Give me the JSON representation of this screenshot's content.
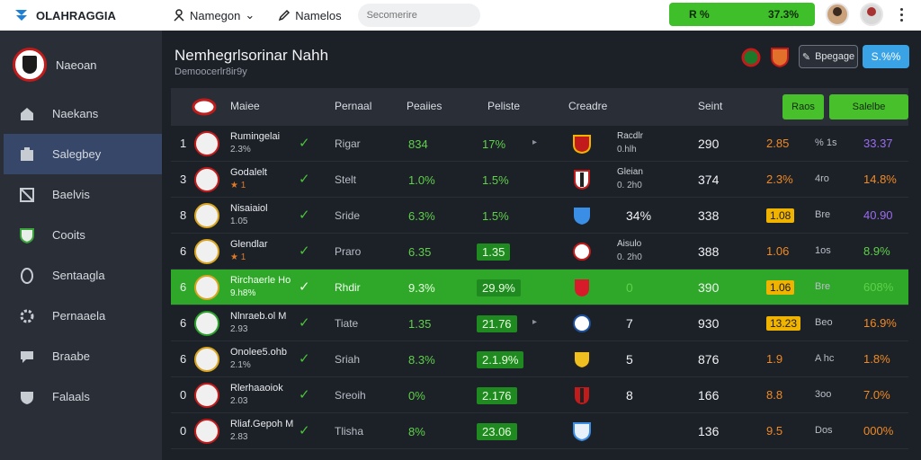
{
  "app": {
    "title": "OLAHRAGGIA"
  },
  "topnav": {
    "link1": "Namegon",
    "link2": "Namelos",
    "search_placeholder": "Secomerire"
  },
  "topbar": {
    "progress_left": "R %",
    "progress_right": "37.3%"
  },
  "sidebar": {
    "title": "Naeoan",
    "items": [
      {
        "label": "Naekans",
        "icon": "home-icon"
      },
      {
        "label": "Salegbey",
        "icon": "building-icon"
      },
      {
        "label": "Baelvis",
        "icon": "box-icon"
      },
      {
        "label": "Cooits",
        "icon": "shield-icon"
      },
      {
        "label": "Sentaagla",
        "icon": "badge-icon"
      },
      {
        "label": "Pernaaela",
        "icon": "gear-icon"
      },
      {
        "label": "Braabe",
        "icon": "chat-icon"
      },
      {
        "label": "Falaals",
        "icon": "shield-check-icon"
      }
    ]
  },
  "header": {
    "title": "Nemhegrlsorinar Nahh",
    "subtitle": "Demoocerlr8ir9y",
    "engage_button": "Bpegage",
    "pct_button": "S.%%"
  },
  "table": {
    "columns": {
      "c1": "Maiee",
      "c2": "Pernaal",
      "c3": "Peaiies",
      "c4": "Peliste",
      "c5": "Creadre",
      "c6": "Seint",
      "btn1": "Raos",
      "btn2": "Salelbe"
    },
    "rows": [
      {
        "rank": "1",
        "name": "Rumingelai",
        "sub": "2.3%",
        "form": "Rigar",
        "p1": "834",
        "p2": "17%",
        "mid": "Racdlr",
        "mid2": "0.hlh",
        "big": "",
        "score": "290",
        "val": "2.85",
        "small": "% 1s",
        "last": "33.37"
      },
      {
        "rank": "3",
        "name": "Godalelt",
        "sub": "★ 1",
        "form": "Stelt",
        "p1": "1.0%",
        "p2": "1.5%",
        "mid": "Gleian",
        "mid2": "0. 2h0",
        "big": "",
        "score": "374",
        "val": "2.3%",
        "small": "4ro",
        "last": "14.8%"
      },
      {
        "rank": "8",
        "name": "Nisaiaiol",
        "sub": "1.05",
        "form": "Sride",
        "p1": "6.3%",
        "p2": "1.5%",
        "mid": "",
        "mid2": "",
        "big": "34%",
        "score": "338",
        "val": "1.08",
        "small": "Bre",
        "last": "40.90"
      },
      {
        "rank": "6",
        "name": "Glendlar",
        "sub": "★ 1",
        "form": "Praro",
        "p1": "6.35",
        "p2": "1.35",
        "mid": "Aisulo",
        "mid2": "0. 2h0",
        "big": "",
        "score": "388",
        "val": "1.06",
        "small": "1os",
        "last": "8.9%"
      },
      {
        "rank": "6",
        "name": "Rirchaerle Ho",
        "sub": "9.h8%",
        "form": "Rhdir",
        "p1": "9.3%",
        "p2": "29.9%",
        "mid": "",
        "mid2": "",
        "big": "0",
        "score": "390",
        "val": "1.06",
        "small": "Bre",
        "last": "608%"
      },
      {
        "rank": "6",
        "name": "Nlnraeb.ol M",
        "sub": "2.93",
        "form": "Tiate",
        "p1": "1.35",
        "p2": "21.76",
        "mid": "",
        "mid2": "",
        "big": "7",
        "score": "930",
        "val": "13.23",
        "small": "Beo",
        "last": "16.9%"
      },
      {
        "rank": "6",
        "name": "Onolee5.ohb",
        "sub": "2.1%",
        "form": "Sriah",
        "p1": "8.3%",
        "p2": "2.1.9%",
        "mid": "",
        "mid2": "",
        "big": "5",
        "score": "876",
        "val": "1.9",
        "small": "A hc",
        "last": "1.8%"
      },
      {
        "rank": "0",
        "name": "Rlerhaaoiok",
        "sub": "2.03",
        "form": "Sreoih",
        "p1": "0%",
        "p2": "2.176",
        "mid": "",
        "mid2": "",
        "big": "8",
        "score": "166",
        "val": "8.8",
        "small": "3oo",
        "last": "7.0%"
      },
      {
        "rank": "0",
        "name": "Rliaf.Gepoh M",
        "sub": "2.83",
        "form": "Tlisha",
        "p1": "8%",
        "p2": "23.06",
        "mid": "",
        "mid2": "",
        "big": "",
        "score": "136",
        "val": "9.5",
        "small": "Dos",
        "last": "000%"
      }
    ]
  },
  "colors": {
    "green": "#3fbf2a",
    "blue": "#3aa3e6",
    "orange": "#f08a24",
    "purple": "#9b6cf0",
    "sidebar_active": "#36476a"
  }
}
